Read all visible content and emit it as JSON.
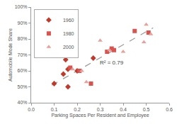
{
  "chart_data": {
    "type": "scatter",
    "x_label": "Parking Spaces Per Resident and Employee",
    "y_label": "Automobile Mode Share",
    "series": [
      {
        "name": "1960",
        "color": "#c0392b",
        "marker": "diamond",
        "x": [
          0.1,
          0.14,
          0.15,
          0.16,
          0.16,
          0.2,
          0.27
        ],
        "values": [
          52,
          58,
          67,
          61,
          50,
          60,
          68
        ]
      },
      {
        "name": "1980",
        "color": "#d9534f",
        "marker": "square",
        "x": [
          0.17,
          0.21,
          0.26,
          0.33,
          0.35,
          0.36,
          0.45,
          0.51
        ],
        "values": [
          62,
          60,
          52,
          72,
          74,
          73,
          85,
          84
        ]
      },
      {
        "name": "2000",
        "color": "#e8a09a",
        "marker": "triangle-up",
        "x": [
          0.18,
          0.22,
          0.24,
          0.3,
          0.34,
          0.4,
          0.49,
          0.5,
          0.52
        ],
        "values": [
          61,
          60,
          53,
          79,
          73,
          72,
          78,
          89,
          83
        ]
      }
    ],
    "trendline": {
      "x": [
        0.09,
        0.53
      ],
      "values": [
        51,
        87
      ],
      "color": "#999999",
      "line_style": "dash"
    },
    "annotations": [
      {
        "text": "R² = 0.79"
      }
    ],
    "xlim": [
      0,
      0.6
    ],
    "xticks": [
      {
        "value": 0,
        "label": "0.0"
      },
      0.1,
      0.2,
      0.3,
      0.4,
      0.5,
      0.6
    ],
    "ylim": [
      40,
      100
    ],
    "yticks": [
      {
        "value": 40,
        "label": "40%"
      },
      {
        "value": 50,
        "label": "50%"
      },
      {
        "value": 60,
        "label": "60%"
      },
      {
        "value": 70,
        "label": "70%"
      },
      {
        "value": 80,
        "label": "80%"
      },
      {
        "value": 90,
        "label": "90%"
      },
      {
        "value": 100,
        "label": "100%"
      }
    ],
    "grid": false,
    "legend": "upper left"
  }
}
